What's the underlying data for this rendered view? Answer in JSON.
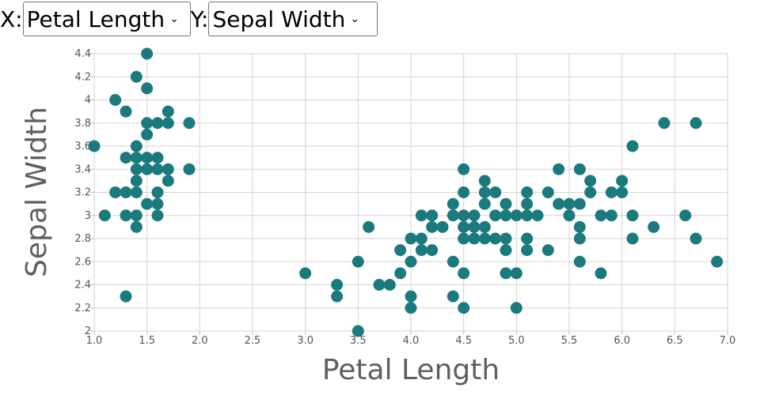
{
  "controls": {
    "x_label": "X:",
    "x_selected": "Petal Length",
    "y_label": "Y:",
    "y_selected": "Sepal Width"
  },
  "colors": {
    "point": "#1b7a7d",
    "grid": "#d3d3d3",
    "axis": "#bfbfbf"
  },
  "chart_data": {
    "type": "scatter",
    "xlabel": "Petal Length",
    "ylabel": "Sepal Width",
    "xlim": [
      1.0,
      7.0
    ],
    "ylim": [
      2.0,
      4.4
    ],
    "xticks": [
      1.0,
      1.5,
      2.0,
      2.5,
      3.0,
      3.5,
      4.0,
      4.5,
      5.0,
      5.5,
      6.0,
      6.5,
      7.0
    ],
    "xtick_labels": [
      "1.0",
      "1.5",
      "2.0",
      "2.5",
      "3.0",
      "3.5",
      "4.0",
      "4.5",
      "5.0",
      "5.5",
      "6.0",
      "6.5",
      "7.0"
    ],
    "yticks": [
      2.0,
      2.2,
      2.4,
      2.6,
      2.8,
      3.0,
      3.2,
      3.4,
      3.6,
      3.8,
      4.0,
      4.2,
      4.4
    ],
    "ytick_labels": [
      "2",
      "2.2",
      "2.4",
      "2.6",
      "2.8",
      "3",
      "3.2",
      "3.4",
      "3.6",
      "3.8",
      "4",
      "4.2",
      "4.4"
    ],
    "grid": true,
    "points": [
      [
        1.0,
        3.6
      ],
      [
        1.1,
        3.0
      ],
      [
        1.2,
        4.0
      ],
      [
        1.2,
        3.2
      ],
      [
        1.3,
        3.9
      ],
      [
        1.3,
        3.5
      ],
      [
        1.3,
        3.2
      ],
      [
        1.3,
        3.0
      ],
      [
        1.3,
        2.3
      ],
      [
        1.4,
        4.2
      ],
      [
        1.4,
        3.6
      ],
      [
        1.4,
        3.5
      ],
      [
        1.4,
        3.4
      ],
      [
        1.4,
        3.3
      ],
      [
        1.4,
        3.2
      ],
      [
        1.4,
        3.0
      ],
      [
        1.4,
        2.9
      ],
      [
        1.5,
        4.4
      ],
      [
        1.5,
        4.1
      ],
      [
        1.5,
        3.8
      ],
      [
        1.5,
        3.7
      ],
      [
        1.5,
        3.5
      ],
      [
        1.5,
        3.4
      ],
      [
        1.5,
        3.1
      ],
      [
        1.6,
        3.8
      ],
      [
        1.6,
        3.5
      ],
      [
        1.6,
        3.4
      ],
      [
        1.6,
        3.2
      ],
      [
        1.6,
        3.1
      ],
      [
        1.6,
        3.0
      ],
      [
        1.7,
        3.9
      ],
      [
        1.7,
        3.8
      ],
      [
        1.7,
        3.4
      ],
      [
        1.7,
        3.3
      ],
      [
        1.9,
        3.8
      ],
      [
        1.9,
        3.4
      ],
      [
        3.0,
        2.5
      ],
      [
        3.3,
        2.4
      ],
      [
        3.3,
        2.3
      ],
      [
        3.5,
        2.6
      ],
      [
        3.5,
        2.0
      ],
      [
        3.6,
        2.9
      ],
      [
        3.7,
        2.4
      ],
      [
        3.8,
        2.4
      ],
      [
        3.9,
        2.7
      ],
      [
        3.9,
        2.5
      ],
      [
        4.0,
        2.8
      ],
      [
        4.0,
        2.6
      ],
      [
        4.0,
        2.3
      ],
      [
        4.0,
        2.2
      ],
      [
        4.1,
        3.0
      ],
      [
        4.1,
        2.8
      ],
      [
        4.1,
        2.7
      ],
      [
        4.2,
        3.0
      ],
      [
        4.2,
        2.9
      ],
      [
        4.2,
        2.7
      ],
      [
        4.3,
        2.9
      ],
      [
        4.4,
        3.1
      ],
      [
        4.4,
        3.0
      ],
      [
        4.4,
        2.6
      ],
      [
        4.4,
        2.3
      ],
      [
        4.5,
        3.4
      ],
      [
        4.5,
        3.2
      ],
      [
        4.5,
        3.0
      ],
      [
        4.5,
        2.9
      ],
      [
        4.5,
        2.8
      ],
      [
        4.5,
        2.5
      ],
      [
        4.5,
        2.2
      ],
      [
        4.6,
        3.0
      ],
      [
        4.6,
        2.9
      ],
      [
        4.6,
        2.8
      ],
      [
        4.7,
        3.3
      ],
      [
        4.7,
        3.2
      ],
      [
        4.7,
        3.1
      ],
      [
        4.7,
        2.9
      ],
      [
        4.7,
        2.8
      ],
      [
        4.8,
        3.2
      ],
      [
        4.8,
        3.0
      ],
      [
        4.8,
        2.8
      ],
      [
        4.9,
        3.1
      ],
      [
        4.9,
        3.0
      ],
      [
        4.9,
        2.8
      ],
      [
        4.9,
        2.7
      ],
      [
        4.9,
        2.5
      ],
      [
        5.0,
        3.0
      ],
      [
        5.0,
        2.5
      ],
      [
        5.0,
        2.2
      ],
      [
        5.1,
        3.2
      ],
      [
        5.1,
        3.1
      ],
      [
        5.1,
        3.0
      ],
      [
        5.1,
        2.8
      ],
      [
        5.1,
        2.7
      ],
      [
        5.2,
        3.0
      ],
      [
        5.3,
        3.2
      ],
      [
        5.3,
        2.7
      ],
      [
        5.4,
        3.4
      ],
      [
        5.4,
        3.1
      ],
      [
        5.5,
        3.1
      ],
      [
        5.5,
        3.0
      ],
      [
        5.6,
        3.4
      ],
      [
        5.6,
        3.1
      ],
      [
        5.6,
        2.9
      ],
      [
        5.6,
        2.8
      ],
      [
        5.6,
        2.6
      ],
      [
        5.7,
        3.3
      ],
      [
        5.7,
        3.2
      ],
      [
        5.8,
        3.0
      ],
      [
        5.8,
        2.5
      ],
      [
        5.9,
        3.2
      ],
      [
        5.9,
        3.0
      ],
      [
        6.0,
        3.3
      ],
      [
        6.0,
        3.2
      ],
      [
        6.1,
        3.6
      ],
      [
        6.1,
        3.0
      ],
      [
        6.1,
        2.8
      ],
      [
        6.3,
        2.9
      ],
      [
        6.4,
        3.8
      ],
      [
        6.6,
        3.0
      ],
      [
        6.7,
        3.8
      ],
      [
        6.7,
        2.8
      ],
      [
        6.9,
        2.6
      ]
    ]
  }
}
